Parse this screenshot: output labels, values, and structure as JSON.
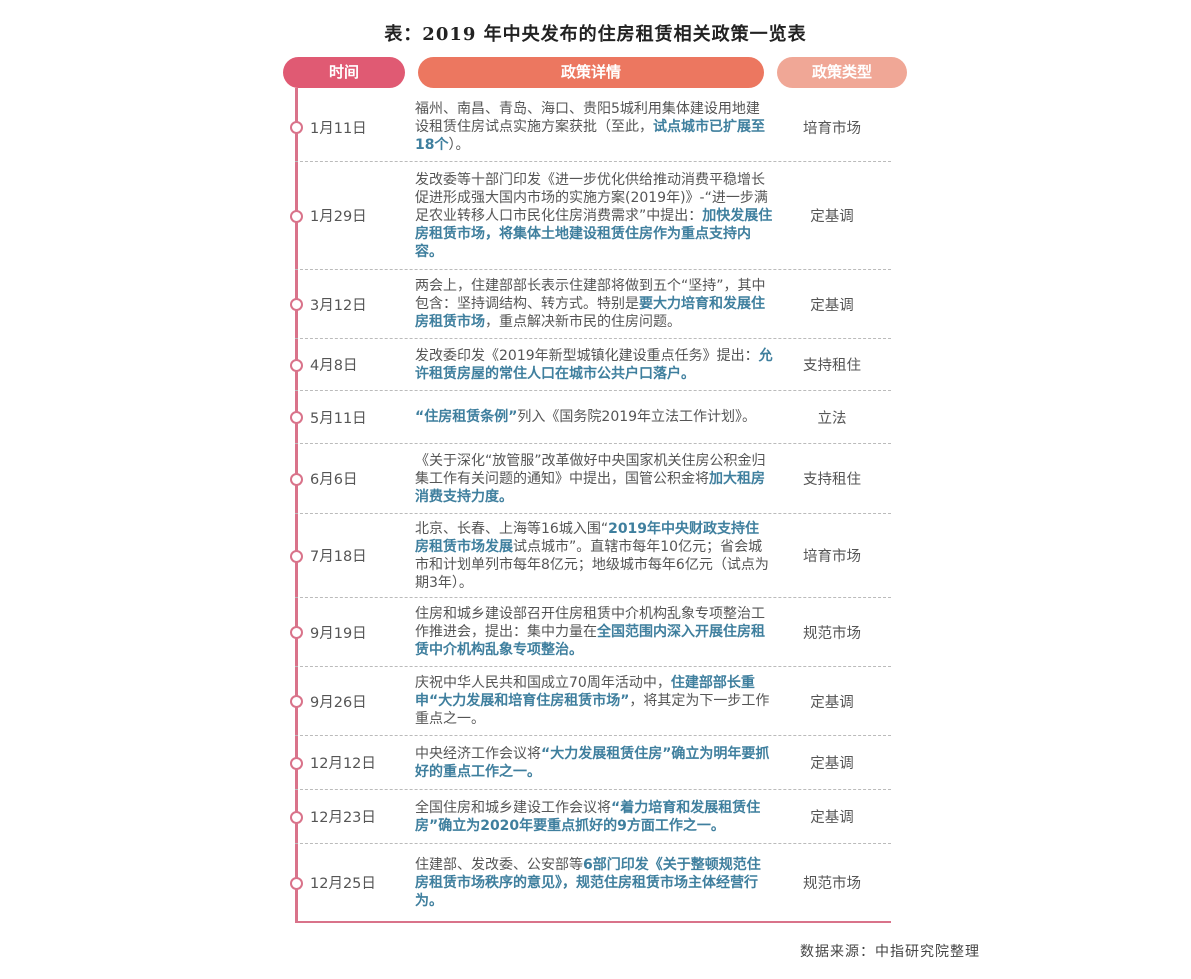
{
  "title": "表：2019 年中央发布的住房租赁相关政策一览表",
  "headers": {
    "time": "时间",
    "detail": "政策详情",
    "type": "政策类型"
  },
  "rows": [
    {
      "date": "1月11日",
      "type": "培育市场",
      "detail": [
        {
          "t": "福州、南昌、青岛、海口、贵阳5城利用集体建设用地建设租赁住房试点实施方案获批（至此，"
        },
        {
          "t": "试点城市已扩展至18个",
          "h": true
        },
        {
          "t": "）。"
        }
      ]
    },
    {
      "date": "1月29日",
      "type": "定基调",
      "detail": [
        {
          "t": "发改委等十部门印发《进一步优化供给推动消费平稳增长促进形成强大国内市场的实施方案(2019年)》-“进一步满足农业转移人口市民化住房消费需求”中提出："
        },
        {
          "t": "加快发展住房租赁市场，将集体土地建设租赁住房作为重点支持内容。",
          "h": true
        }
      ]
    },
    {
      "date": "3月12日",
      "type": "定基调",
      "detail": [
        {
          "t": "两会上，住建部部长表示住建部将做到五个“坚持”，其中包含：坚持调结构、转方式。特别是"
        },
        {
          "t": "要大力培育和发展住房租赁市场",
          "h": true
        },
        {
          "t": "，重点解决新市民的住房问题。"
        }
      ]
    },
    {
      "date": "4月8日",
      "type": "支持租住",
      "detail": [
        {
          "t": "发改委印发《2019年新型城镇化建设重点任务》提出："
        },
        {
          "t": "允许租赁房屋的常住人口在城市公共户口落户。",
          "h": true
        }
      ]
    },
    {
      "date": "5月11日",
      "type": "立法",
      "detail": [
        {
          "t": "“住房租赁条例”",
          "h": true
        },
        {
          "t": "列入《国务院2019年立法工作计划》。"
        }
      ]
    },
    {
      "date": "6月6日",
      "type": "支持租住",
      "detail": [
        {
          "t": "《关于深化“放管服”改革做好中央国家机关住房公积金归集工作有关问题的通知》中提出，国管公积金将"
        },
        {
          "t": "加大租房消费支持力度。",
          "h": true
        }
      ]
    },
    {
      "date": "7月18日",
      "type": "培育市场",
      "detail": [
        {
          "t": "北京、长春、上海等16城入围“"
        },
        {
          "t": "2019年中央财政支持住房租赁市场发展",
          "h": true
        },
        {
          "t": "试点城市”。直辖市每年10亿元；省会城市和计划单列市每年8亿元；地级城市每年6亿元（试点为期3年）。"
        }
      ]
    },
    {
      "date": "9月19日",
      "type": "规范市场",
      "detail": [
        {
          "t": "住房和城乡建设部召开住房租赁中介机构乱象专项整治工作推进会，提出：集中力量在"
        },
        {
          "t": "全国范围内深入开展住房租赁中介机构乱象专项整治。",
          "h": true
        }
      ]
    },
    {
      "date": "9月26日",
      "type": "定基调",
      "detail": [
        {
          "t": "庆祝中华人民共和国成立70周年活动中，"
        },
        {
          "t": "住建部部长重申“大力发展和培育住房租赁市场”",
          "h": true
        },
        {
          "t": "，将其定为下一步工作重点之一。"
        }
      ]
    },
    {
      "date": "12月12日",
      "type": "定基调",
      "detail": [
        {
          "t": "中央经济工作会议将"
        },
        {
          "t": "“大力发展租赁住房”确立为明年要抓好的重点工作之一。",
          "h": true
        }
      ]
    },
    {
      "date": "12月23日",
      "type": "定基调",
      "detail": [
        {
          "t": "全国住房和城乡建设工作会议将"
        },
        {
          "t": "“着力培育和发展租赁住房”确立为2020年要重点抓好的9方面工作之一。",
          "h": true
        }
      ]
    },
    {
      "date": "12月25日",
      "type": "规范市场",
      "detail": [
        {
          "t": "住建部、发改委、公安部等"
        },
        {
          "t": "6部门印发《关于整顿规范住房租赁市场秩序的意见》，规范住房租赁市场主体经营行为。",
          "h": true
        }
      ]
    }
  ],
  "source": "数据来源：中指研究院整理"
}
